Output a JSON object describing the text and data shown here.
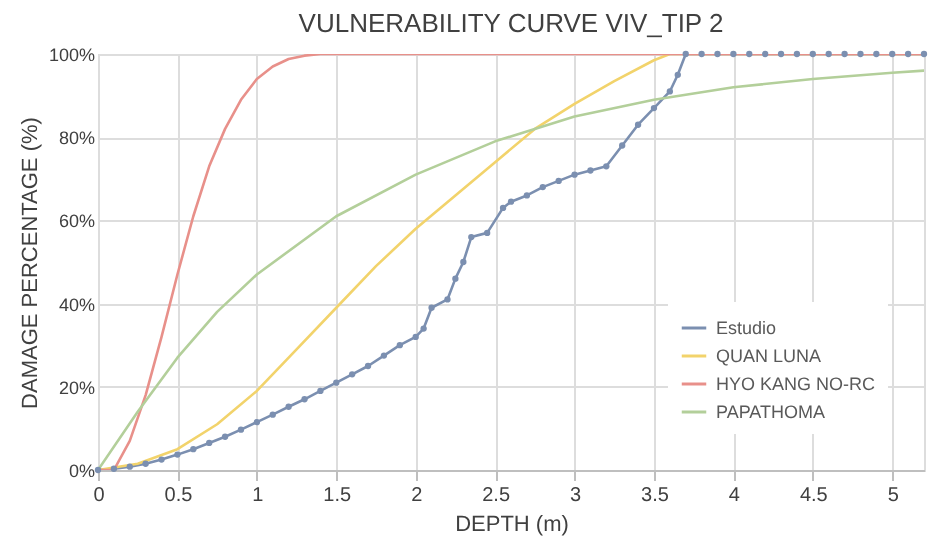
{
  "chart_data": {
    "type": "line",
    "title": "VULNERABILITY CURVE VIV_TIP 2",
    "xlabel": "DEPTH (m)",
    "ylabel": "DAMAGE PERCENTAGE (%)",
    "xlim": [
      0,
      5.2
    ],
    "xticks": [
      0,
      0.5,
      1,
      1.5,
      2,
      2.5,
      3,
      3.5,
      4,
      4.5,
      5
    ],
    "ylim": [
      0,
      100
    ],
    "yticks": [
      {
        "value": 0,
        "label": "0%"
      },
      {
        "value": 20,
        "label": "20%"
      },
      {
        "value": 40,
        "label": "40%"
      },
      {
        "value": 60,
        "label": "60%"
      },
      {
        "value": 80,
        "label": "80%"
      },
      {
        "value": 100,
        "label": "100%"
      }
    ],
    "grid": true,
    "legend": "bottom right",
    "series": [
      {
        "name": "Estudio",
        "color": "#7b8fb0",
        "marker": "circle",
        "x": [
          0,
          0.1,
          0.2,
          0.3,
          0.4,
          0.5,
          0.6,
          0.7,
          0.8,
          0.9,
          1.0,
          1.1,
          1.2,
          1.3,
          1.4,
          1.5,
          1.6,
          1.7,
          1.8,
          1.9,
          2.0,
          2.05,
          2.1,
          2.2,
          2.25,
          2.3,
          2.35,
          2.45,
          2.55,
          2.6,
          2.7,
          2.8,
          2.9,
          3.0,
          3.1,
          3.2,
          3.3,
          3.4,
          3.5,
          3.6,
          3.65,
          3.7,
          3.8,
          3.9,
          4.0,
          4.1,
          4.2,
          4.3,
          4.4,
          4.5,
          4.6,
          4.7,
          4.8,
          4.9,
          5.0,
          5.1,
          5.2
        ],
        "values": [
          0,
          0.3,
          0.8,
          1.5,
          2.5,
          3.7,
          5,
          6.5,
          8,
          9.7,
          11.5,
          13.3,
          15.2,
          17,
          19,
          21,
          23,
          25,
          27.5,
          30,
          32,
          34,
          39,
          41,
          46,
          50,
          56,
          57,
          63,
          64.5,
          66,
          68,
          69.5,
          71,
          72,
          73,
          78,
          83,
          87,
          91,
          95,
          100,
          100,
          100,
          100,
          100,
          100,
          100,
          100,
          100,
          100,
          100,
          100,
          100,
          100,
          100,
          100
        ]
      },
      {
        "name": "QUAN LUNA",
        "color": "#f2d36b",
        "marker": "none",
        "x": [
          0,
          0.25,
          0.5,
          0.75,
          1,
          1.25,
          1.5,
          1.75,
          2,
          2.25,
          2.5,
          2.75,
          3,
          3.25,
          3.5,
          3.6,
          5.2
        ],
        "values": [
          0,
          1.5,
          5,
          11,
          19,
          29,
          39,
          49,
          58,
          66,
          74,
          82,
          88,
          93.5,
          98.5,
          100,
          100
        ]
      },
      {
        "name": "HYO KANG NO-RC",
        "color": "#e8908a",
        "marker": "none",
        "x": [
          0,
          0.1,
          0.2,
          0.3,
          0.4,
          0.5,
          0.6,
          0.7,
          0.8,
          0.9,
          1.0,
          1.1,
          1.2,
          1.3,
          1.4,
          5.2
        ],
        "values": [
          0,
          0,
          7,
          18,
          32,
          47,
          61,
          73,
          82,
          89,
          94,
          97,
          98.8,
          99.6,
          100,
          100
        ]
      },
      {
        "name": "PAPATHOMA",
        "color": "#b3cf9a",
        "marker": "none",
        "x": [
          0,
          0.25,
          0.5,
          0.75,
          1,
          1.5,
          2,
          2.5,
          3,
          3.5,
          4,
          4.5,
          5,
          5.2
        ],
        "values": [
          0,
          14,
          27,
          38,
          47,
          61,
          71,
          79,
          85,
          89,
          92,
          94,
          95.5,
          96
        ]
      }
    ]
  }
}
